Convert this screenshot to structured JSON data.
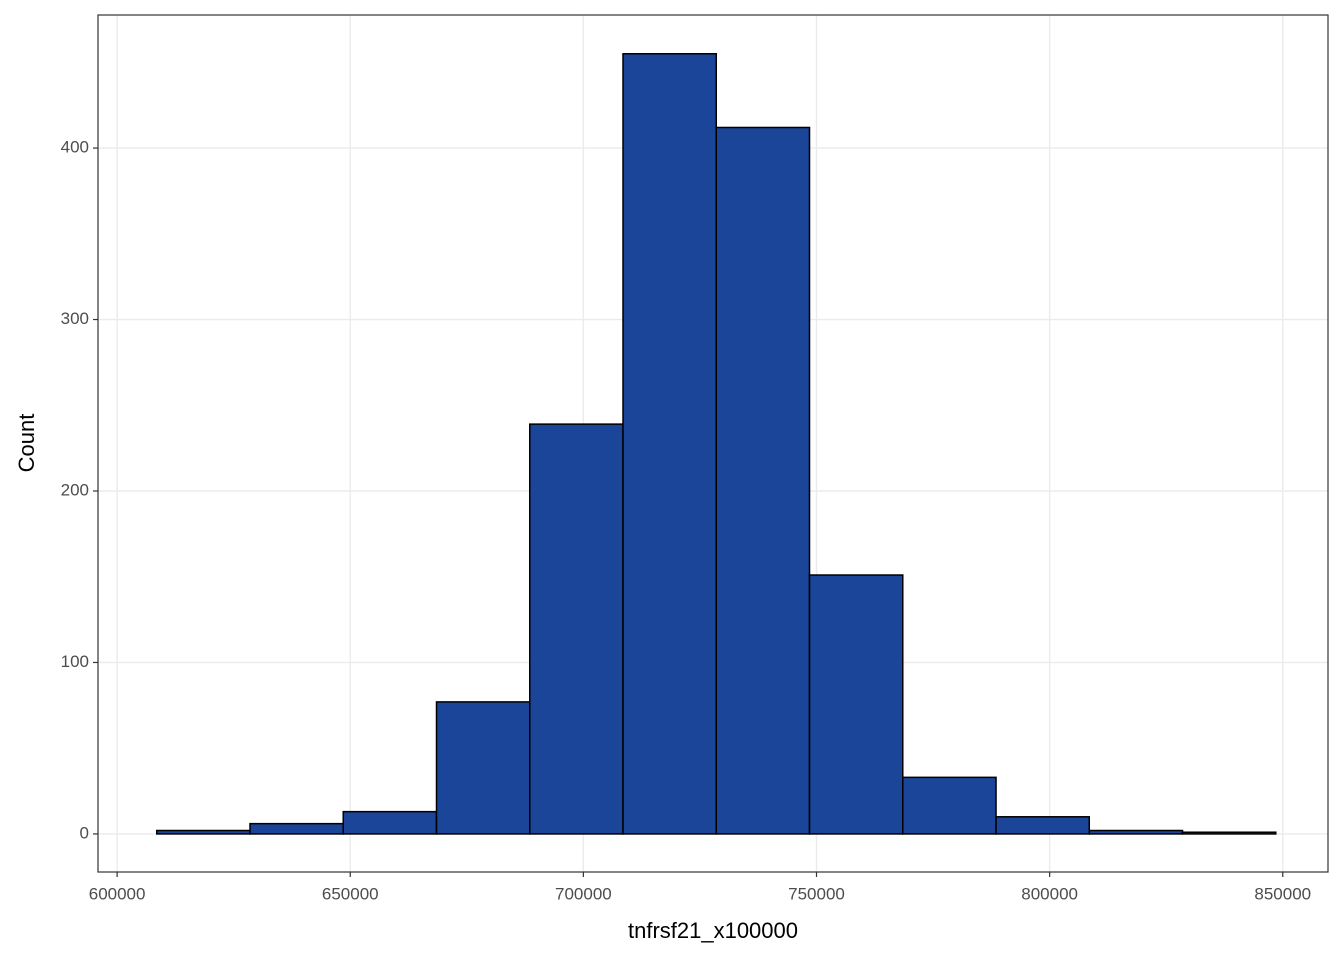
{
  "chart_data": {
    "type": "histogram",
    "x_label": "tnfrsf21_x100000",
    "y_label": "Count",
    "bins": [
      608500,
      628500,
      648500,
      668500,
      688500,
      708500,
      728500,
      748500,
      768500,
      788500,
      808500,
      828500,
      848500
    ],
    "values": [
      2,
      6,
      13,
      77,
      239,
      455,
      412,
      151,
      33,
      10,
      2,
      1
    ],
    "color": "#1a4599",
    "edge_color": "#000000",
    "xlim": [
      595900,
      859700
    ],
    "xticks": [
      600000,
      650000,
      700000,
      750000,
      800000,
      850000
    ],
    "ylim": [
      -22.2,
      477.6
    ],
    "yticks": [
      0,
      100,
      200,
      300,
      400
    ],
    "grid": true
  }
}
